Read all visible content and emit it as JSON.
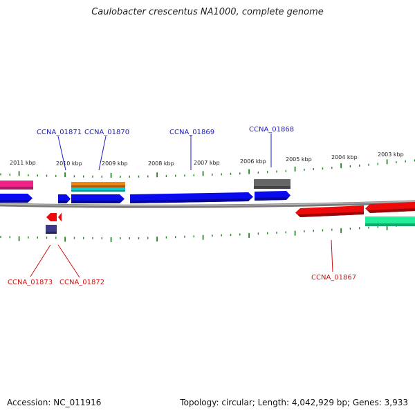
{
  "title": "Caulobacter crescentus NA1000, complete genome",
  "accession": "Accession: NC_011916",
  "summary": "Topology: circular; Length: 4,042,929 bp; Genes: 3,933",
  "scale_labels": [
    "2011 kbp",
    "2010 kbp",
    "2009 kbp",
    "2008 kbp",
    "2007 kbp",
    "2006 kbp",
    "2005 kbp",
    "2004 kbp",
    "2003 kbp"
  ],
  "gene_labels": {
    "forward": [
      "CCNA_01871",
      "CCNA_01870",
      "CCNA_01869",
      "CCNA_01868"
    ],
    "reverse": [
      "CCNA_01873",
      "CCNA_01872",
      "CCNA_01867"
    ]
  },
  "colors": {
    "forward_label": "#1a1acc",
    "reverse_label": "#cc1111",
    "tick": "#228822",
    "backbone": "#808080",
    "blue_gene": "#0a0aee",
    "red_gene": "#ee0a0a",
    "pink_gene": "#ee2288",
    "orange_gene": "#ee8811",
    "cyan_gene": "#11cccc",
    "gray_gene": "#666666",
    "green_gene": "#22ee99",
    "navy_gene": "#3a3a88"
  }
}
